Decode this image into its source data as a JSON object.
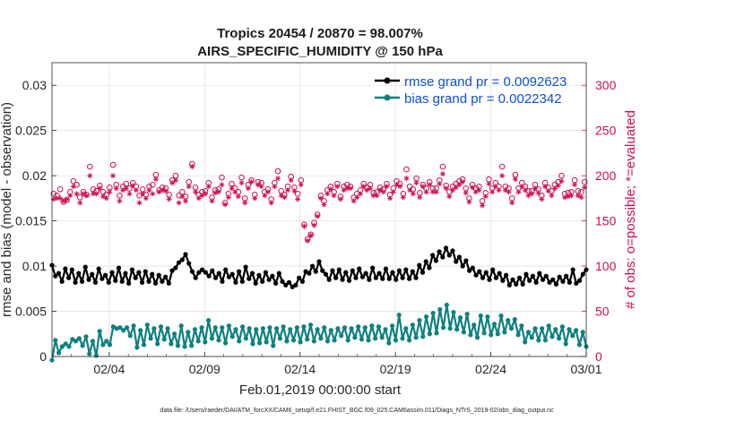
{
  "chart_data": {
    "type": "line",
    "title": "Tropics 20454 / 20870 = 98.007%",
    "subtitle": "AIRS_SPECIFIC_HUMIDITY @ 150 hPa",
    "xlabel": "Feb.01,2019 00:00:00 start",
    "ylabel": "rmse and bias (model - observation)",
    "ylabel_right": "# of obs: o=possible; *=evaluated",
    "footer": "data file: /Users/raeder/DAI/ATM_forcXX/CAM6_setup/f.e21.FHIST_BGC.f09_025.CAM6assim.011/Diags_NTrS_2019-02/obs_diag_output.nc",
    "xlim": [
      0,
      28
    ],
    "ylim": [
      0,
      0.0325
    ],
    "ylim_right": [
      0,
      325
    ],
    "x_ticks": [
      3,
      8,
      13,
      18,
      23,
      28
    ],
    "x_tick_labels": [
      "02/04",
      "02/09",
      "02/14",
      "02/19",
      "02/24",
      "03/01"
    ],
    "y_ticks": [
      0,
      0.005,
      0.01,
      0.015,
      0.02,
      0.025,
      0.03
    ],
    "y_tick_labels": [
      "0",
      "0.005",
      "0.01",
      "0.015",
      "0.02",
      "0.025",
      "0.03"
    ],
    "y_right_ticks": [
      0,
      50,
      100,
      150,
      200,
      250,
      300
    ],
    "y_right_tick_labels": [
      "0",
      "50",
      "100",
      "150",
      "200",
      "250",
      "300"
    ],
    "grid": true,
    "legend_position": "top-right",
    "series": [
      {
        "name": "rmse grand pr = 0.0092623",
        "color": "#000000",
        "values": [
          0.0101,
          0.0089,
          0.0092,
          0.0083,
          0.0097,
          0.0087,
          0.0096,
          0.0082,
          0.0092,
          0.0083,
          0.0099,
          0.0085,
          0.0091,
          0.0082,
          0.0097,
          0.0086,
          0.009,
          0.0082,
          0.0093,
          0.0084,
          0.0098,
          0.0083,
          0.0092,
          0.0081,
          0.0096,
          0.0087,
          0.0093,
          0.0082,
          0.0094,
          0.0083,
          0.0091,
          0.0081,
          0.009,
          0.0083,
          0.0088,
          0.0081,
          0.0095,
          0.0098,
          0.0104,
          0.0107,
          0.0113,
          0.0103,
          0.0094,
          0.0087,
          0.0093,
          0.0096,
          0.0093,
          0.0089,
          0.0095,
          0.0087,
          0.0092,
          0.0083,
          0.0096,
          0.0088,
          0.0091,
          0.0082,
          0.0094,
          0.0083,
          0.0099,
          0.0086,
          0.0092,
          0.0081,
          0.009,
          0.0083,
          0.0093,
          0.0085,
          0.0089,
          0.0081,
          0.0092,
          0.0083,
          0.0079,
          0.0082,
          0.0077,
          0.0079,
          0.0087,
          0.0083,
          0.0094,
          0.0092,
          0.01,
          0.0094,
          0.0105,
          0.0095,
          0.0091,
          0.0085,
          0.0095,
          0.0087,
          0.0096,
          0.0085,
          0.0093,
          0.0084,
          0.0095,
          0.0087,
          0.0097,
          0.0088,
          0.0092,
          0.0085,
          0.0098,
          0.0087,
          0.0092,
          0.0086,
          0.0097,
          0.0086,
          0.0093,
          0.0085,
          0.0095,
          0.0087,
          0.0096,
          0.0086,
          0.0094,
          0.0087,
          0.0101,
          0.0093,
          0.0105,
          0.0098,
          0.0112,
          0.0106,
          0.0116,
          0.011,
          0.012,
          0.0112,
          0.0117,
          0.0105,
          0.011,
          0.01,
          0.0106,
          0.0095,
          0.0098,
          0.009,
          0.0094,
          0.0087,
          0.0093,
          0.0085,
          0.0096,
          0.0087,
          0.0092,
          0.0084,
          0.009,
          0.0079,
          0.0085,
          0.008,
          0.0087,
          0.008,
          0.0091,
          0.0084,
          0.0089,
          0.0082,
          0.0092,
          0.0085,
          0.0089,
          0.0082,
          0.0085,
          0.008,
          0.0088,
          0.0083,
          0.0089,
          0.0082,
          0.0096,
          0.0081,
          0.0084,
          0.0091,
          0.0096
        ]
      },
      {
        "name": "bias grand pr = 0.0022342",
        "color": "#0f8080",
        "values": [
          -0.0004,
          0.0018,
          0.0004,
          0.0011,
          0.0014,
          0.0011,
          0.0019,
          0.0017,
          0.002,
          0.0012,
          0.0022,
          0.0003,
          0.0017,
          0.0001,
          0.0028,
          0.0013,
          0.0017,
          0.0013,
          0.0033,
          0.0031,
          0.0032,
          0.0029,
          0.0032,
          0.0023,
          0.0034,
          0.001,
          0.0029,
          0.0013,
          0.0035,
          0.002,
          0.0031,
          0.0014,
          0.0033,
          0.0019,
          0.0031,
          0.0014,
          0.0025,
          0.0012,
          0.0034,
          0.0011,
          0.0027,
          0.0012,
          0.003,
          0.0017,
          0.0032,
          0.0016,
          0.004,
          0.002,
          0.0032,
          0.0018,
          0.0032,
          0.0015,
          0.0034,
          0.0022,
          0.003,
          0.0017,
          0.0033,
          0.002,
          0.0031,
          0.0014,
          0.003,
          0.0015,
          0.0031,
          0.0016,
          0.0032,
          0.0012,
          0.0031,
          0.002,
          0.0033,
          0.0017,
          0.003,
          0.0018,
          0.0032,
          0.0016,
          0.0033,
          0.0019,
          0.0035,
          0.0017,
          0.003,
          0.002,
          0.0032,
          0.0017,
          0.0029,
          0.0018,
          0.0031,
          0.0023,
          0.0032,
          0.0018,
          0.0031,
          0.0021,
          0.0033,
          0.0019,
          0.0032,
          0.0018,
          0.0034,
          0.002,
          0.0033,
          0.0021,
          0.003,
          0.0015,
          0.0034,
          0.0018,
          0.0046,
          0.002,
          0.0031,
          0.0018,
          0.0035,
          0.0021,
          0.004,
          0.0022,
          0.0044,
          0.0025,
          0.0048,
          0.0026,
          0.0052,
          0.0032,
          0.0057,
          0.0031,
          0.0049,
          0.003,
          0.0043,
          0.0027,
          0.0047,
          0.0024,
          0.0035,
          0.0021,
          0.0045,
          0.0026,
          0.0044,
          0.0024,
          0.0036,
          0.0025,
          0.0045,
          0.0027,
          0.004,
          0.0031,
          0.0041,
          0.0024,
          0.0034,
          0.0016,
          0.0027,
          0.0021,
          0.0031,
          0.0018,
          0.0031,
          0.0018,
          0.0034,
          0.0022,
          0.003,
          0.002,
          0.0033,
          0.0014,
          0.003,
          0.0023,
          0.0029,
          0.0013,
          0.0027,
          0.0011
        ]
      },
      {
        "name": "possible",
        "color": "#cc0f4d",
        "marker": "o",
        "axis": "right",
        "values": [
          180,
          178,
          185,
          171,
          173,
          182,
          194,
          190,
          176,
          182,
          179,
          210,
          185,
          183,
          189,
          182,
          179,
          187,
          212,
          190,
          178,
          188,
          191,
          186,
          192,
          188,
          178,
          185,
          179,
          188,
          190,
          201,
          184,
          187,
          186,
          179,
          195,
          200,
          178,
          182,
          177,
          193,
          213,
          187,
          179,
          182,
          183,
          192,
          176,
          184,
          185,
          198,
          170,
          180,
          191,
          186,
          182,
          198,
          175,
          190,
          195,
          179,
          193,
          192,
          182,
          185,
          174,
          192,
          205,
          183,
          179,
          188,
          199,
          187,
          180,
          195,
          146,
          130,
          135,
          148,
          157,
          178,
          172,
          184,
          188,
          182,
          191,
          177,
          188,
          190,
          188,
          176,
          180,
          184,
          191,
          187,
          190,
          181,
          182,
          187,
          185,
          191,
          179,
          186,
          194,
          191,
          180,
          207,
          188,
          185,
          197,
          181,
          190,
          186,
          193,
          186,
          186,
          195,
          210,
          189,
          182,
          188,
          191,
          194,
          196,
          186,
          175,
          190,
          186,
          188,
          172,
          181,
          196,
          186,
          192,
          188,
          210,
          188,
          186,
          175,
          201,
          186,
          192,
          188,
          183,
          183,
          190,
          185,
          178,
          192,
          187,
          183,
          190,
          193,
          200,
          180,
          181,
          182,
          195,
          183,
          182,
          193
        ]
      },
      {
        "name": "evaluated",
        "color": "#cc0f4d",
        "marker": "*",
        "axis": "right",
        "values": [
          174,
          175,
          175,
          172,
          174,
          178,
          188,
          180,
          170,
          180,
          178,
          200,
          180,
          180,
          186,
          177,
          175,
          182,
          200,
          186,
          172,
          184,
          186,
          180,
          189,
          184,
          170,
          180,
          175,
          184,
          180,
          196,
          182,
          184,
          183,
          174,
          192,
          195,
          170,
          177,
          172,
          188,
          210,
          182,
          175,
          178,
          180,
          188,
          172,
          181,
          182,
          190,
          168,
          176,
          186,
          182,
          177,
          192,
          170,
          186,
          193,
          175,
          190,
          188,
          178,
          182,
          170,
          188,
          197,
          178,
          176,
          184,
          195,
          183,
          174,
          190,
          144,
          128,
          134,
          145,
          155,
          175,
          168,
          180,
          185,
          178,
          188,
          174,
          184,
          186,
          186,
          172,
          176,
          180,
          188,
          184,
          186,
          178,
          178,
          184,
          182,
          188,
          175,
          182,
          190,
          188,
          176,
          197,
          184,
          180,
          192,
          176,
          188,
          182,
          190,
          182,
          182,
          191,
          202,
          186,
          177,
          184,
          187,
          190,
          193,
          181,
          171,
          187,
          182,
          184,
          167,
          177,
          191,
          182,
          188,
          184,
          200,
          184,
          182,
          170,
          196,
          182,
          188,
          184,
          178,
          180,
          186,
          181,
          174,
          188,
          183,
          178,
          186,
          189,
          194,
          176,
          177,
          178,
          190,
          178,
          176,
          187
        ]
      }
    ]
  }
}
